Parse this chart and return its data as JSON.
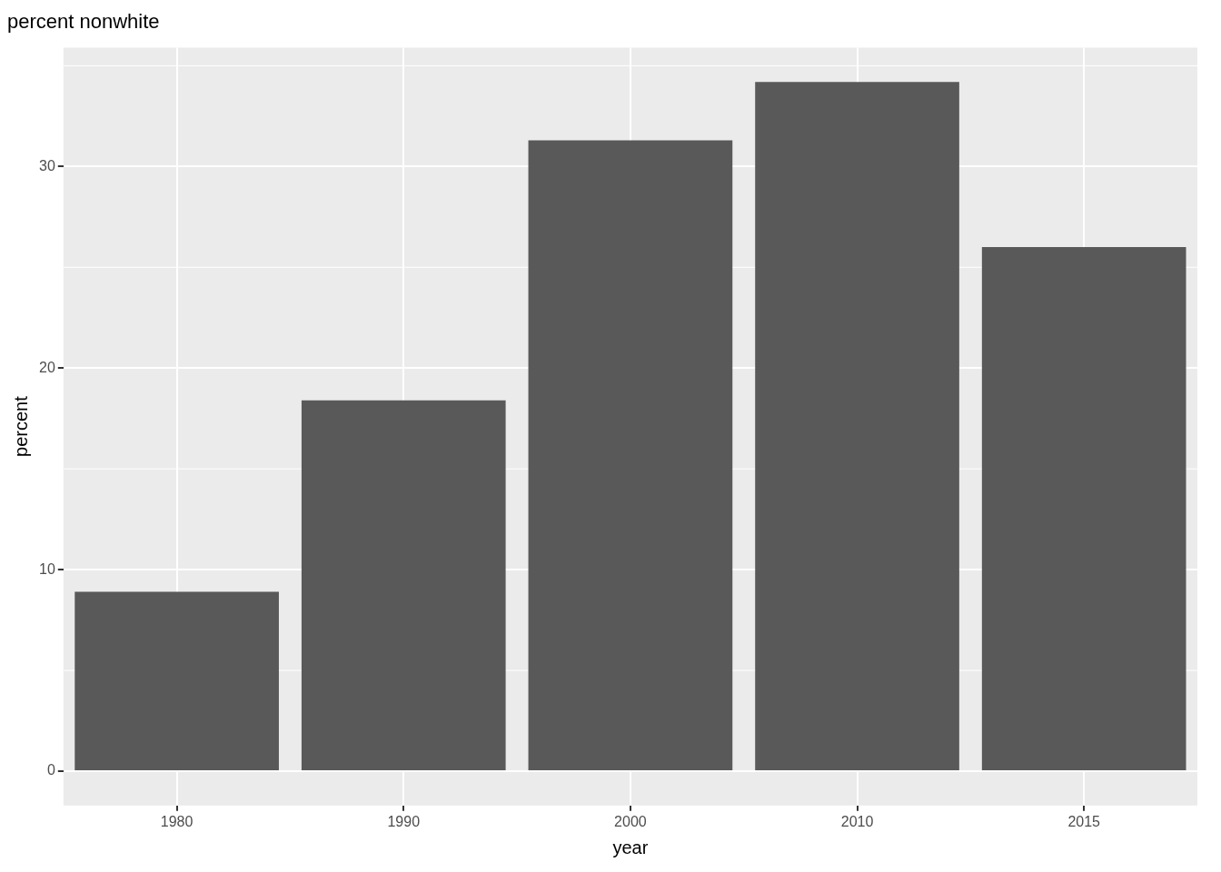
{
  "chart_data": {
    "type": "bar",
    "title": "percent nonwhite",
    "xlabel": "year",
    "ylabel": "percent",
    "categories": [
      "1980",
      "1990",
      "2000",
      "2010",
      "2015"
    ],
    "values": [
      8.9,
      18.4,
      31.3,
      34.2,
      26.0
    ],
    "color": "#595959",
    "ylim": [
      -1.7,
      35.9
    ],
    "yticks": [
      0,
      10,
      20,
      30
    ],
    "grid": true,
    "legend": false
  }
}
